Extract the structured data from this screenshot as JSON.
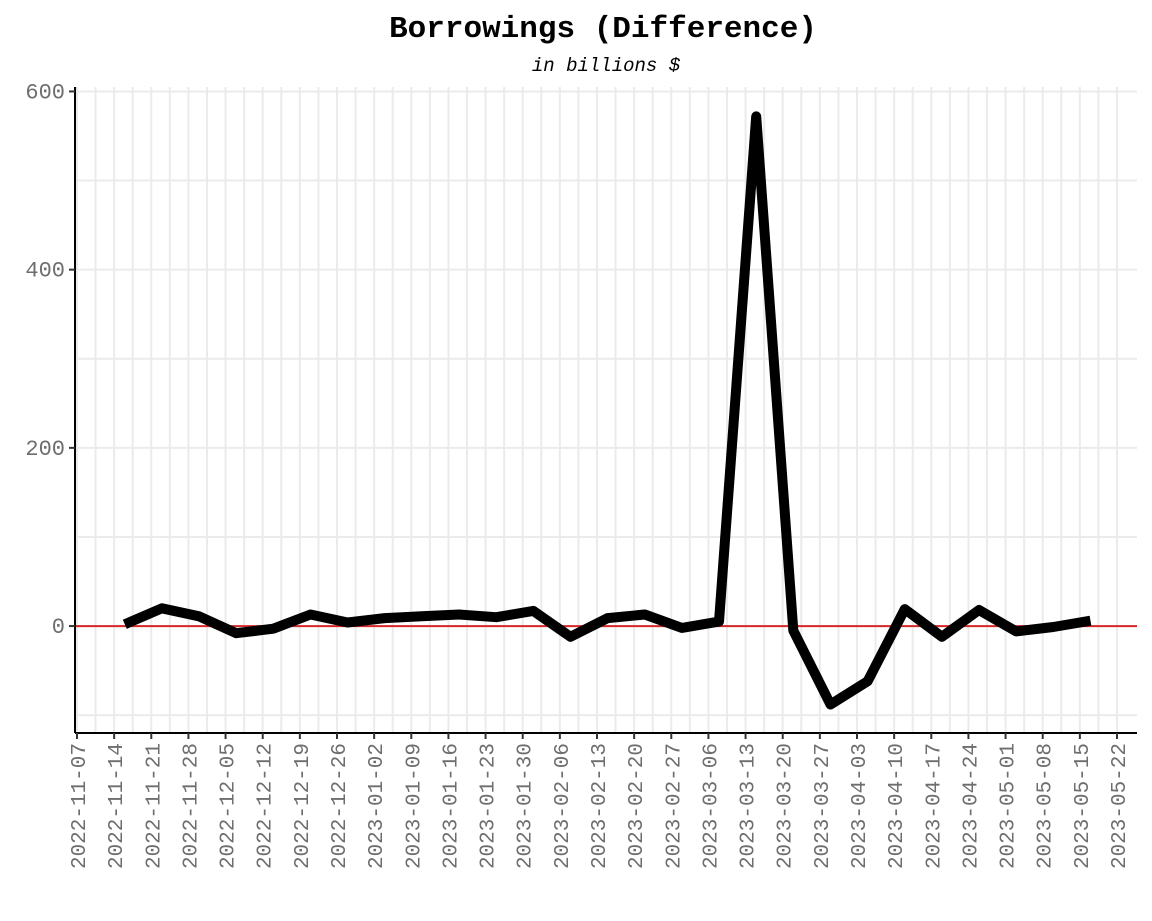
{
  "chart_data": {
    "type": "line",
    "title": "Borrowings (Difference)",
    "subtitle": "in billions $",
    "xlabel": "",
    "ylabel": "",
    "ylim": [
      -120,
      605
    ],
    "yticks": [
      0,
      200,
      400,
      600
    ],
    "xlim": [
      "2022-11-07",
      "2023-05-22"
    ],
    "xticks": [
      "2022-11-07",
      "2022-11-14",
      "2022-11-21",
      "2022-11-28",
      "2022-12-05",
      "2022-12-12",
      "2022-12-19",
      "2022-12-26",
      "2023-01-02",
      "2023-01-09",
      "2023-01-16",
      "2023-01-23",
      "2023-01-30",
      "2023-02-06",
      "2023-02-13",
      "2023-02-20",
      "2023-02-27",
      "2023-03-06",
      "2023-03-13",
      "2023-03-20",
      "2023-03-27",
      "2023-04-03",
      "2023-04-10",
      "2023-04-17",
      "2023-04-24",
      "2023-05-01",
      "2023-05-08",
      "2023-05-15",
      "2023-05-22"
    ],
    "reference_line": {
      "y": 0,
      "color": "#d62728"
    },
    "line_color": "#000000",
    "grid": true,
    "x": [
      "2022-11-16",
      "2022-11-23",
      "2022-11-30",
      "2022-12-07",
      "2022-12-14",
      "2022-12-21",
      "2022-12-28",
      "2023-01-04",
      "2023-01-11",
      "2023-01-18",
      "2023-01-25",
      "2023-02-01",
      "2023-02-08",
      "2023-02-15",
      "2023-02-22",
      "2023-03-01",
      "2023-03-08",
      "2023-03-15",
      "2023-03-22",
      "2023-03-29",
      "2023-04-05",
      "2023-04-12",
      "2023-04-19",
      "2023-04-26",
      "2023-05-03",
      "2023-05-10",
      "2023-05-17"
    ],
    "values": [
      2,
      20,
      11,
      -8,
      -3,
      13,
      4,
      9,
      11,
      13,
      10,
      17,
      -12,
      9,
      13,
      -2,
      5,
      572,
      -5,
      -88,
      -62,
      19,
      -12,
      18,
      -6,
      -1,
      6
    ]
  }
}
